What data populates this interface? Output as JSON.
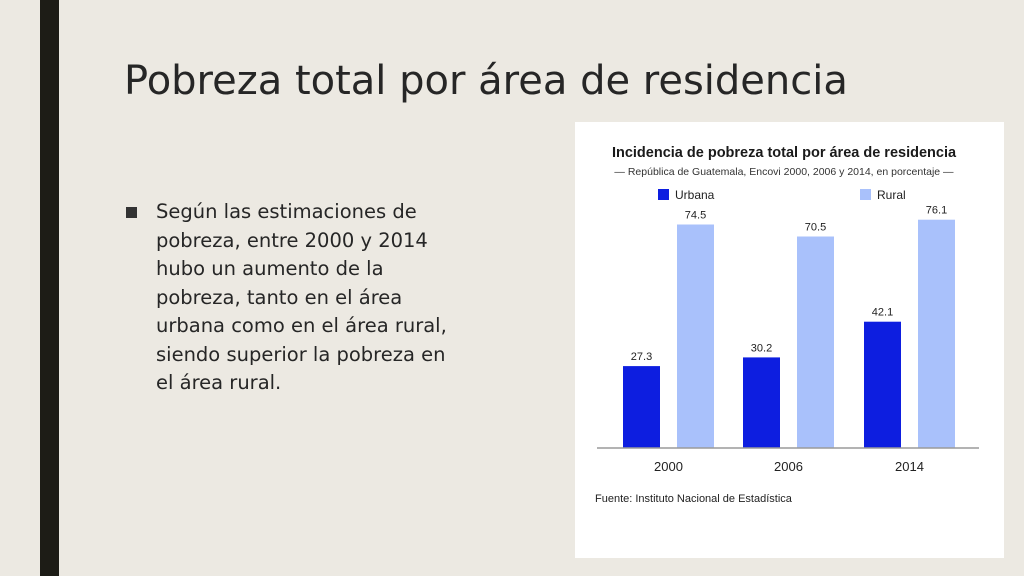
{
  "slide": {
    "title": "Pobreza total por área de residencia",
    "bullet_text": "Según las estimaciones de pobreza, entre 2000 y 2014 hubo un aumento de la pobreza, tanto en el área urbana como en el área rural, siendo superior la pobreza en el área rural."
  },
  "colors": {
    "urbana": "#0d1ee0",
    "rural": "#a9c1fb",
    "side_bar": "#1d1c16",
    "background": "#ece9e2"
  },
  "chart_data": {
    "type": "bar",
    "title": "Incidencia de pobreza total por área de residencia",
    "subtitle": "— República de Guatemala, Encovi 2000, 2006 y 2014, en porcentaje —",
    "categories": [
      "2000",
      "2006",
      "2014"
    ],
    "series": [
      {
        "name": "Urbana",
        "values": [
          27.3,
          30.2,
          42.1
        ],
        "labels": [
          "27.3",
          "30.2",
          "42.1"
        ]
      },
      {
        "name": "Rural",
        "values": [
          74.5,
          70.5,
          76.1
        ],
        "labels": [
          "74.5",
          "70.5",
          "76.1"
        ]
      }
    ],
    "ylim": [
      0,
      80
    ],
    "grid": false,
    "legend_position": "top",
    "source": "Fuente: Instituto Nacional de Estadística"
  }
}
